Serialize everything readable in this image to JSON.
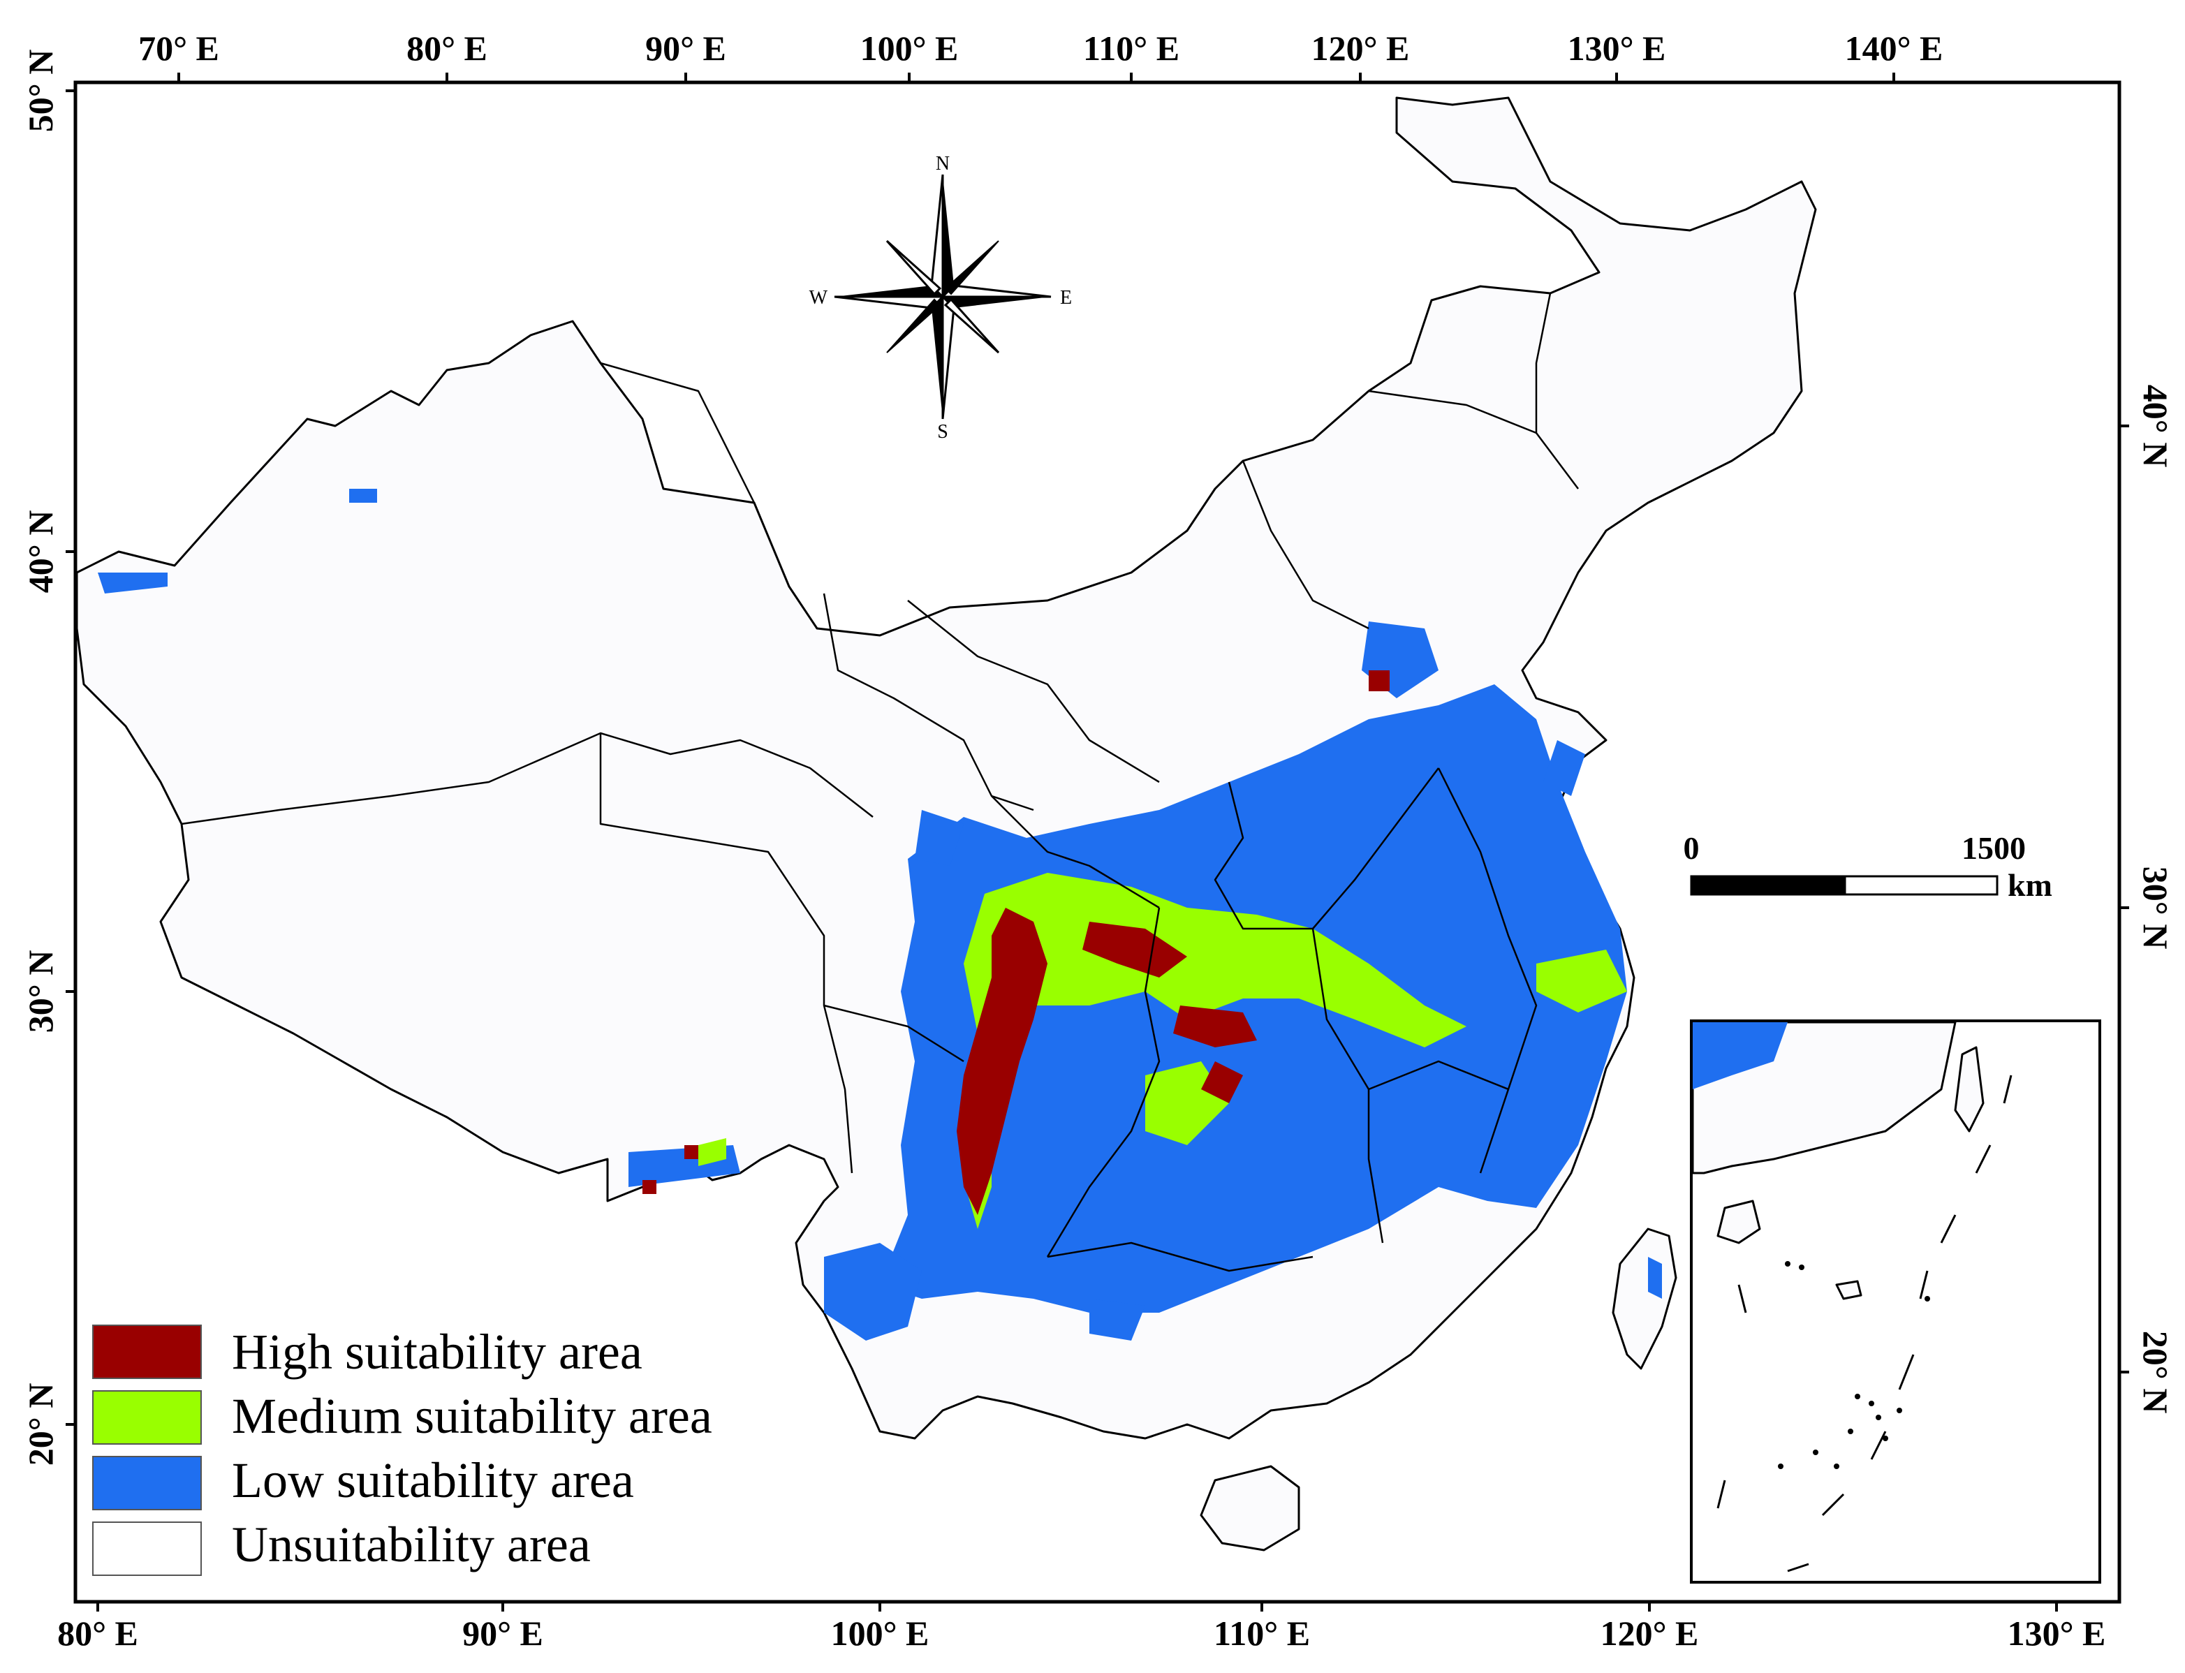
{
  "colors": {
    "high": "#990000",
    "medium": "#99ff00",
    "low": "#1f6ff0",
    "unsuitable": "#ffffff",
    "land": "#fbfbfd",
    "frame": "#000000"
  },
  "axes": {
    "top": [
      "70° E",
      "80° E",
      "90° E",
      "100° E",
      "110° E",
      "120° E",
      "130° E",
      "140° E"
    ],
    "bottom": [
      "80° E",
      "90° E",
      "100° E",
      "110° E",
      "120° E",
      "130° E"
    ],
    "left": [
      "50° N",
      "40° N",
      "30° N",
      "20° N"
    ],
    "right": [
      "40° N",
      "30° N",
      "20° N"
    ]
  },
  "compass": {
    "n": "N",
    "s": "S",
    "e": "E",
    "w": "W"
  },
  "scale_bar": {
    "start": "0",
    "end": "1500",
    "unit": "km"
  },
  "legend": {
    "high": "High suitability area",
    "medium": "Medium suitability area",
    "low": "Low suitability area",
    "unsuitable": "Unsuitability area"
  }
}
